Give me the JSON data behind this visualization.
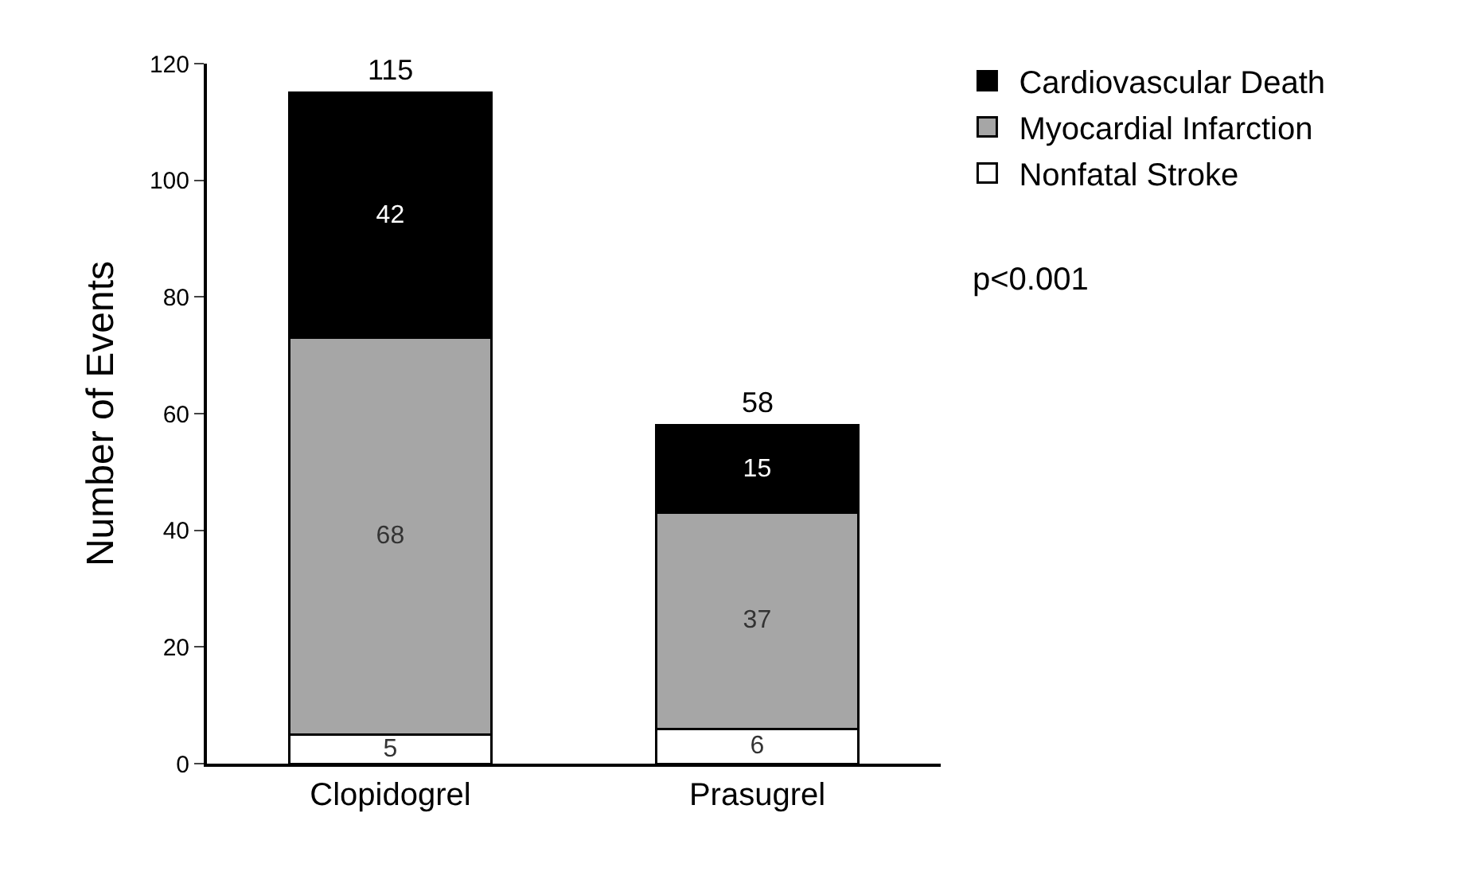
{
  "chart_data": {
    "type": "bar",
    "ylabel": "Number of Events",
    "categories": [
      "Clopidogrel",
      "Prasugrel"
    ],
    "stacked": true,
    "series": [
      {
        "name": "Nonfatal Stroke",
        "color": "#ffffff",
        "values": [
          5,
          6
        ]
      },
      {
        "name": "Myocardial Infarction",
        "color": "#a6a6a6",
        "values": [
          68,
          37
        ]
      },
      {
        "name": "Cardiovascular Death",
        "color": "#000000",
        "values": [
          42,
          15
        ]
      }
    ],
    "data_labels": true,
    "totals": [
      "115",
      "58"
    ],
    "ylim": [
      0,
      120
    ],
    "yticks": [
      0,
      20,
      40,
      60,
      80,
      100,
      120
    ],
    "grid": false,
    "legend": "top right",
    "annotations": [
      "p<0.001"
    ]
  }
}
